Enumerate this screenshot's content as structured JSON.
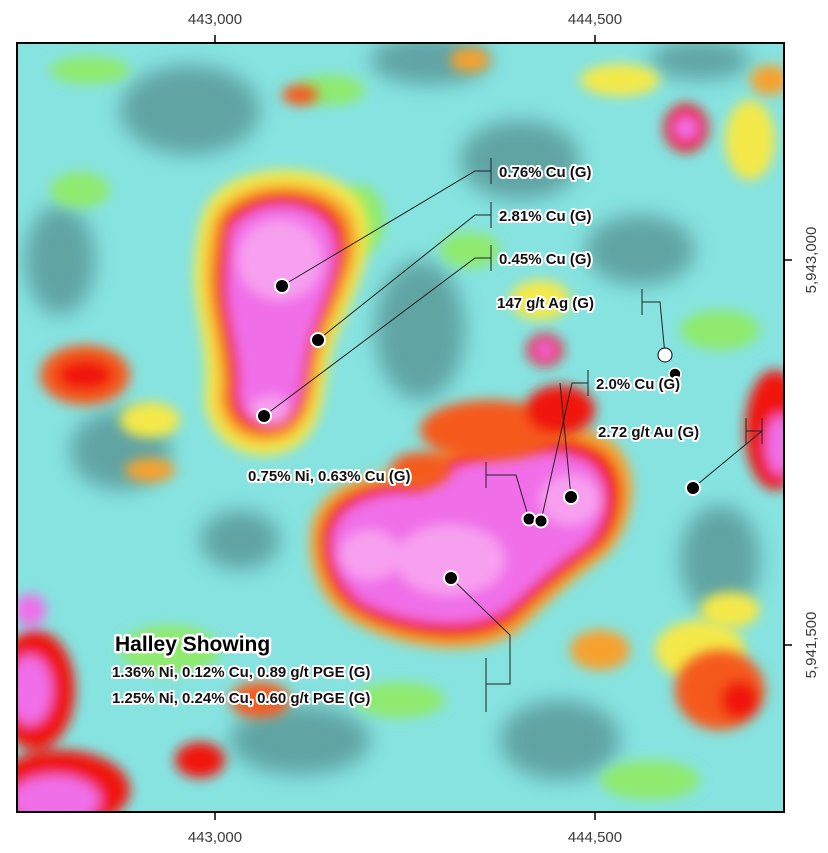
{
  "axes": {
    "x_ticks": [
      "443,000",
      "444,500"
    ],
    "y_ticks": [
      "5,943,000",
      "5,941,500"
    ]
  },
  "colors": {
    "low": "#5a9a9a",
    "mid_low": "#86e3e0",
    "mid": "#8fea6e",
    "mid_high": "#f4e94a",
    "high_a": "#f7a22e",
    "high_b": "#f55a1e",
    "high_c": "#f01410",
    "very_high": "#f06ee8",
    "peak": "#f8a0f0",
    "sample_dot": "#000000",
    "sample_dot_hollow": "#ffffff"
  },
  "showing": {
    "title": "Halley Showing",
    "line1": "1.36% Ni, 0.12% Cu, 0.89 g/t PGE (G)",
    "line2": "1.25% Ni, 0.24% Cu, 0.60 g/t PGE (G)"
  },
  "samples": [
    {
      "id": "s1",
      "label": "0.76% Cu (G)"
    },
    {
      "id": "s2",
      "label": "2.81% Cu (G)"
    },
    {
      "id": "s3",
      "label": "0.45% Cu (G)"
    },
    {
      "id": "s4",
      "label": "147 g/t Ag (G)"
    },
    {
      "id": "s5",
      "label": "2.0% Cu (G)"
    },
    {
      "id": "s6",
      "label": "2.72 g/t Au (G)"
    },
    {
      "id": "s7",
      "label": "0.75% Ni, 0.63% Cu (G)"
    }
  ]
}
